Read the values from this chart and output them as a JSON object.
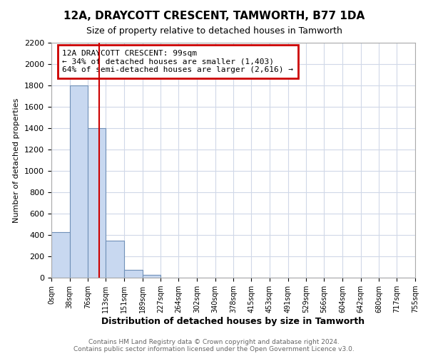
{
  "title": "12A, DRAYCOTT CRESCENT, TAMWORTH, B77 1DA",
  "subtitle": "Size of property relative to detached houses in Tamworth",
  "xlabel": "Distribution of detached houses by size in Tamworth",
  "ylabel": "Number of detached properties",
  "footer_line1": "Contains HM Land Registry data © Crown copyright and database right 2024.",
  "footer_line2": "Contains public sector information licensed under the Open Government Licence v3.0.",
  "property_size": 99,
  "annotation_line1": "12A DRAYCOTT CRESCENT: 99sqm",
  "annotation_line2": "← 34% of detached houses are smaller (1,403)",
  "annotation_line3": "64% of semi-detached houses are larger (2,616) →",
  "bin_edges": [
    0,
    38,
    76,
    113,
    151,
    189,
    227,
    264,
    302,
    340,
    378,
    415,
    453,
    491,
    529,
    566,
    604,
    642,
    680,
    717,
    755
  ],
  "bin_counts": [
    430,
    1800,
    1400,
    350,
    75,
    25,
    0,
    0,
    0,
    0,
    0,
    0,
    0,
    0,
    0,
    0,
    0,
    0,
    0,
    0
  ],
  "bar_color": "#c8d8f0",
  "bar_edge_color": "#7090b8",
  "line_color": "#cc0000",
  "annotation_box_color": "#cc0000",
  "grid_color": "#d0d8e8",
  "ylim": [
    0,
    2200
  ],
  "yticks": [
    0,
    200,
    400,
    600,
    800,
    1000,
    1200,
    1400,
    1600,
    1800,
    2000,
    2200
  ],
  "xtick_labels": [
    "0sqm",
    "38sqm",
    "76sqm",
    "113sqm",
    "151sqm",
    "189sqm",
    "227sqm",
    "264sqm",
    "302sqm",
    "340sqm",
    "378sqm",
    "415sqm",
    "453sqm",
    "491sqm",
    "529sqm",
    "566sqm",
    "604sqm",
    "642sqm",
    "680sqm",
    "717sqm",
    "755sqm"
  ],
  "background_color": "#ffffff",
  "title_fontsize": 11,
  "subtitle_fontsize": 9,
  "xlabel_fontsize": 9,
  "ylabel_fontsize": 8,
  "ytick_fontsize": 8,
  "xtick_fontsize": 7,
  "annotation_fontsize": 8,
  "footer_fontsize": 6.5
}
